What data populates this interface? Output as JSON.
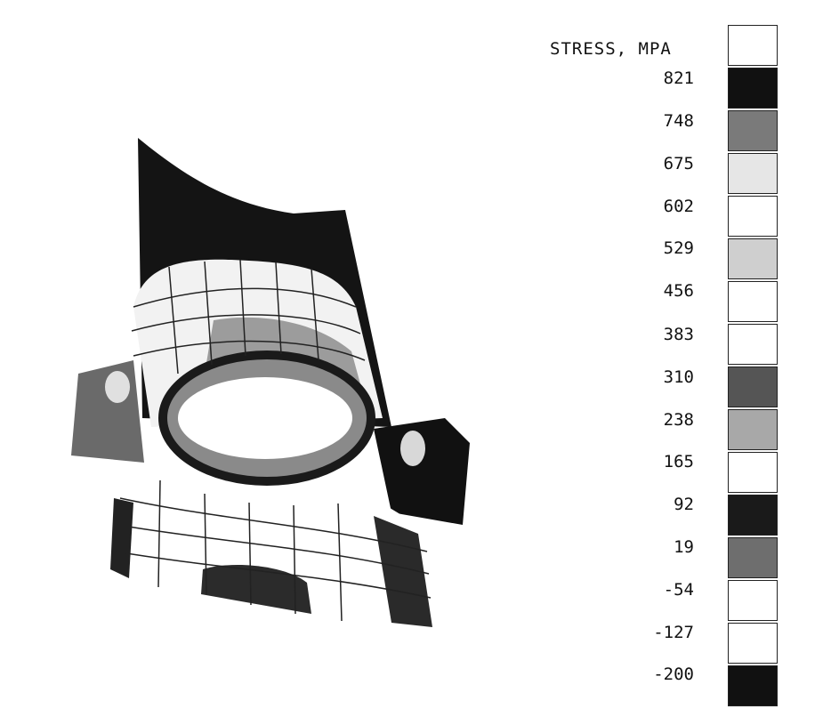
{
  "legend": {
    "title": "STRESS, MPA",
    "levels": [
      "821",
      "748",
      "675",
      "602",
      "529",
      "456",
      "383",
      "310",
      "238",
      "165",
      "92",
      "19",
      "-54",
      "-127",
      "-200"
    ],
    "band_colors": [
      "#ffffff",
      "#111111",
      "#7a7a7a",
      "#e6e6e6",
      "#ffffff",
      "#cfcfcf",
      "#ffffff",
      "#ffffff",
      "#555555",
      "#a8a8a8",
      "#ffffff",
      "#1a1a1a",
      "#6e6e6e",
      "#ffffff",
      "#ffffff",
      "#111111"
    ]
  },
  "colors": {
    "dark_band": "#141414",
    "mid_band": "#6a6a6a",
    "light_band": "#bdbdbd",
    "white_band": "#ffffff",
    "mesh": "#222222"
  }
}
